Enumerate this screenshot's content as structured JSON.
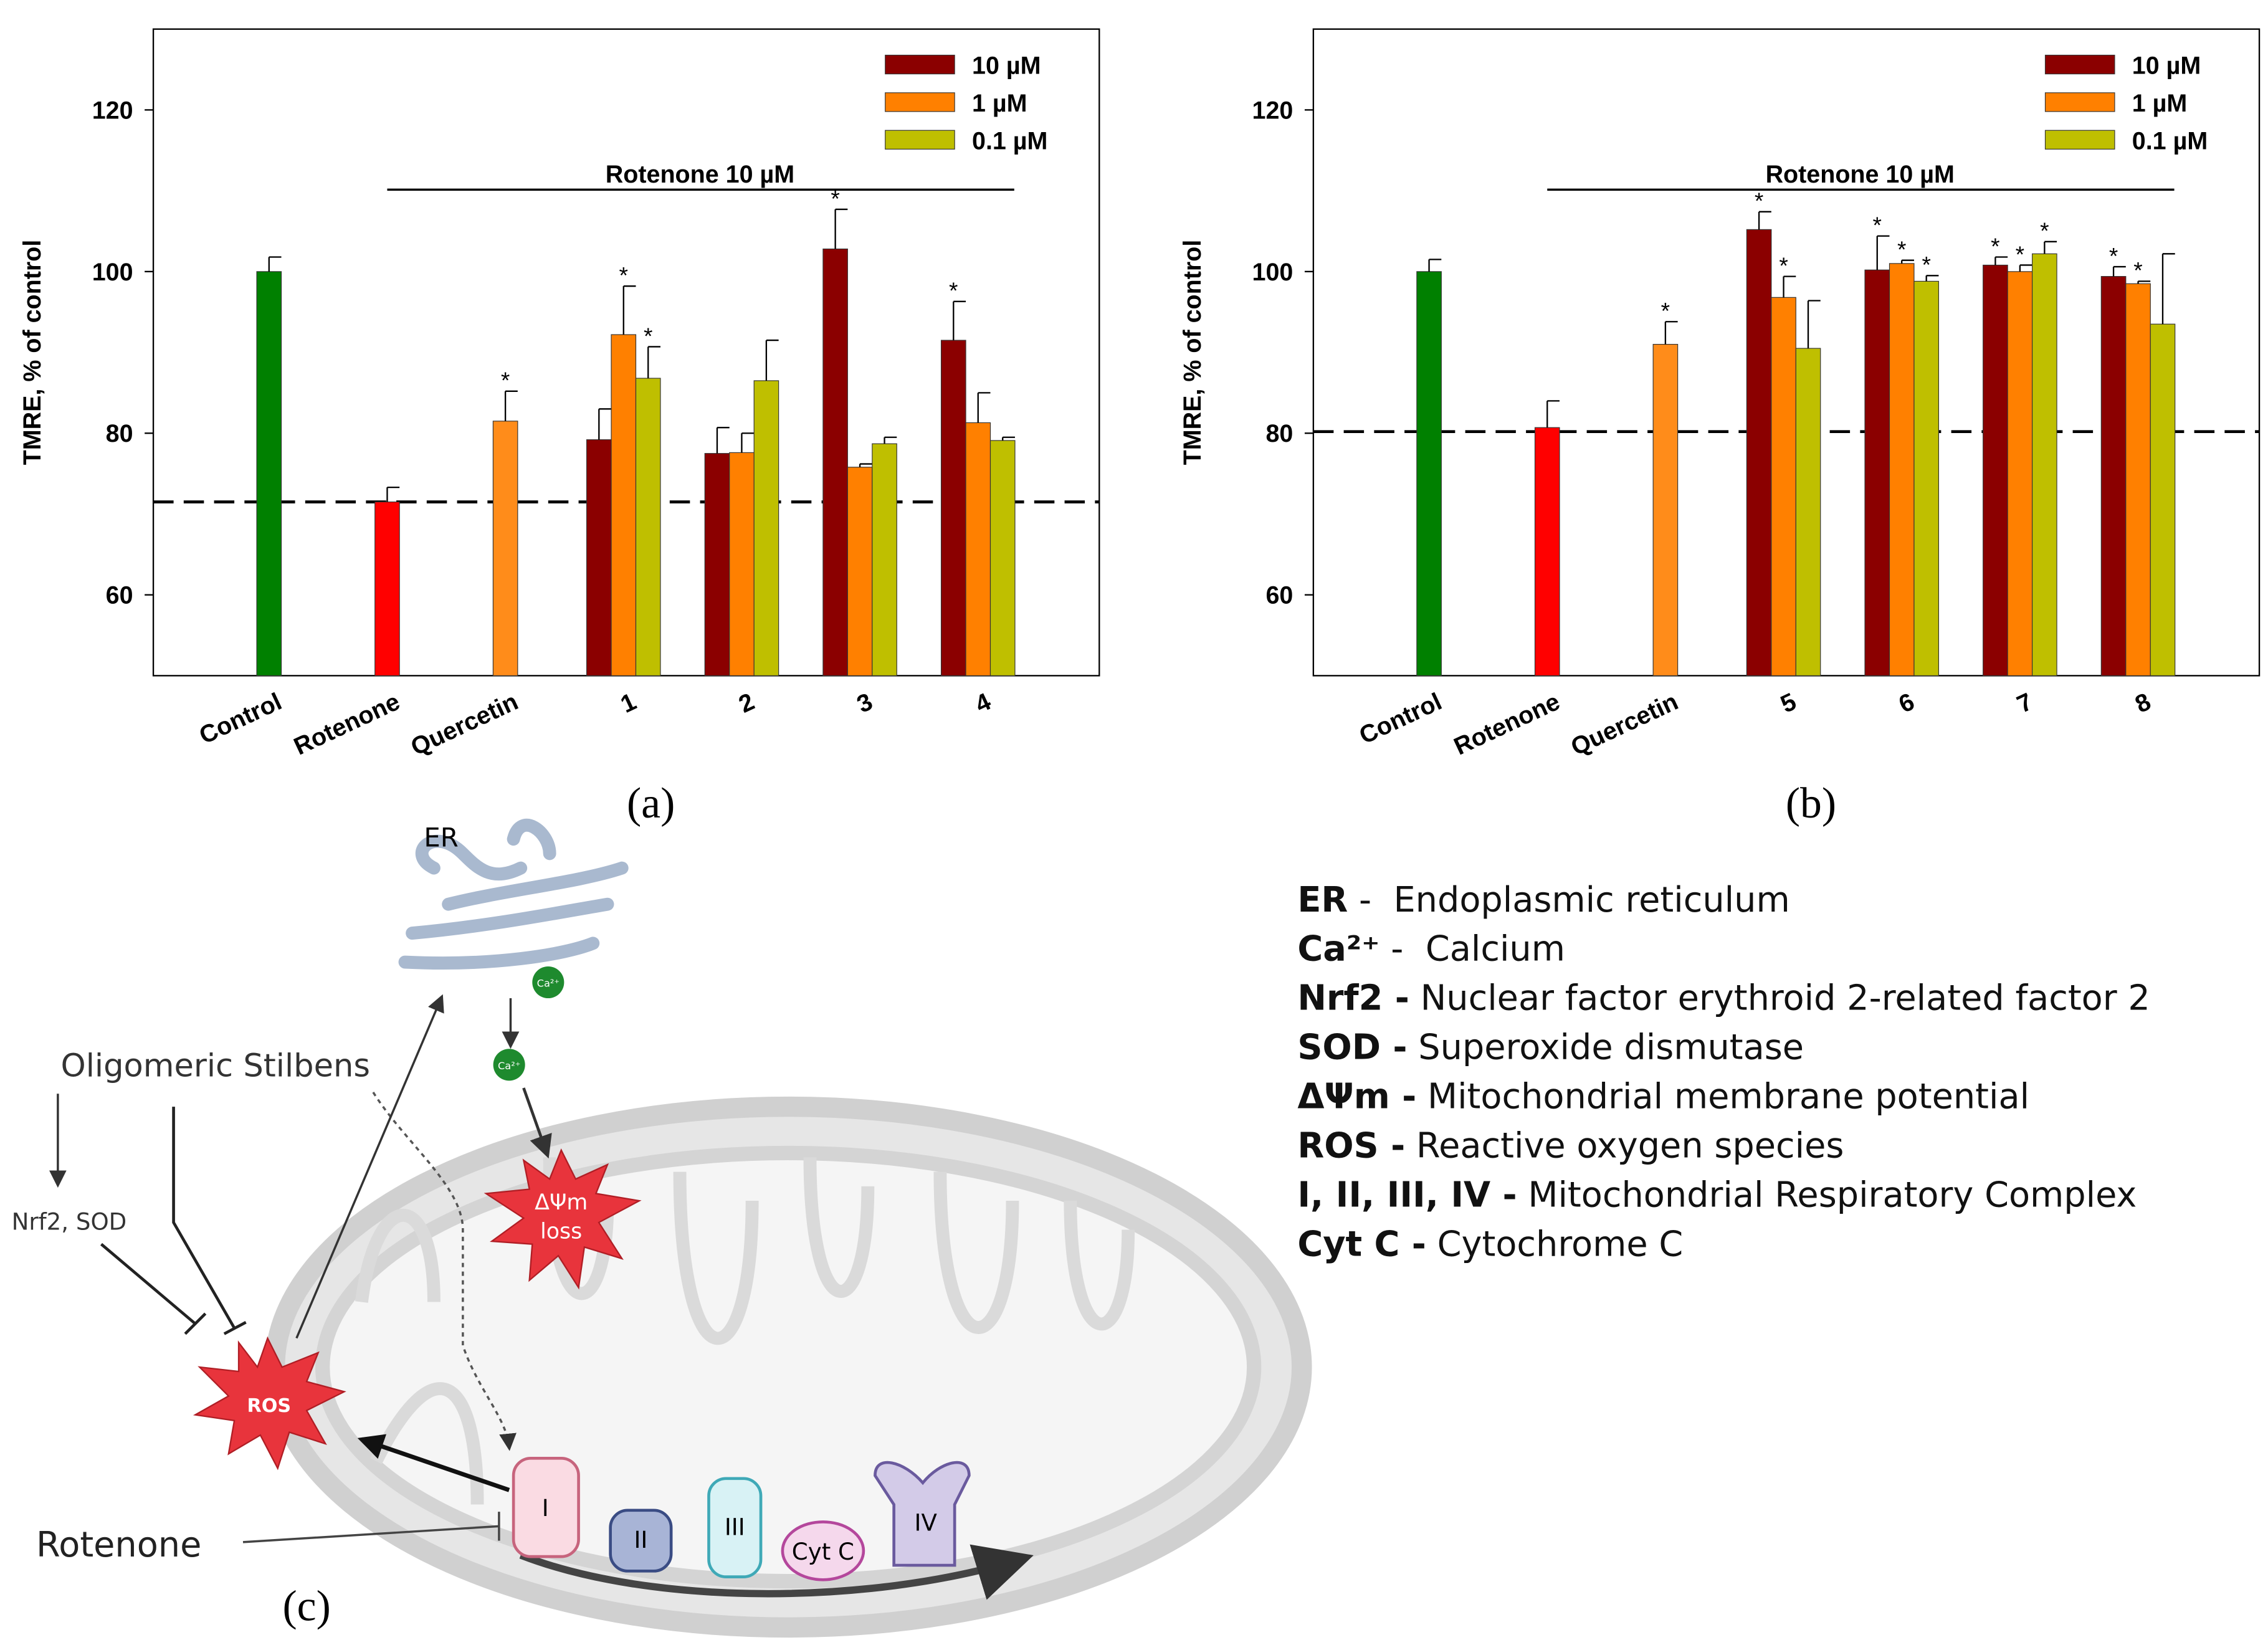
{
  "chart_data": [
    {
      "type": "bar",
      "panel_label": "(a)",
      "y_label": "TMRE, % of control",
      "categories": [
        "Control",
        "Rotenone",
        "Quercetin",
        "1",
        "2",
        "3",
        "4"
      ],
      "ylim": [
        50,
        130
      ],
      "yticks": [
        60,
        80,
        100,
        120
      ],
      "reference_line": 71.5,
      "bracket_label": "Rotenone 10 µM",
      "single_bars": {
        "values": [
          100,
          71.5,
          81.5,
          null,
          null,
          null,
          null
        ],
        "errors": [
          1.8,
          1.8,
          3.7,
          null,
          null,
          null,
          null
        ],
        "colors": [
          "#008000",
          "#ff0000",
          "#ff8c1a",
          null,
          null,
          null,
          null
        ],
        "significance": [
          null,
          null,
          "*",
          null,
          null,
          null,
          null
        ]
      },
      "series": [
        {
          "name": "10 µM",
          "color": "#8b0000",
          "values": [
            null,
            null,
            null,
            79.2,
            77.5,
            102.8,
            91.5
          ],
          "errors": [
            null,
            null,
            null,
            3.8,
            3.2,
            4.9,
            4.8
          ],
          "significance": [
            null,
            null,
            null,
            null,
            null,
            "*",
            "*"
          ]
        },
        {
          "name": "1 µM",
          "color": "#ff8000",
          "values": [
            null,
            null,
            null,
            92.2,
            77.6,
            75.8,
            81.3
          ],
          "errors": [
            null,
            null,
            null,
            6,
            2.4,
            0.4,
            3.7
          ],
          "significance": [
            null,
            null,
            null,
            "*",
            null,
            null,
            null
          ]
        },
        {
          "name": "0.1 µM",
          "color": "#bfbf00",
          "values": [
            null,
            null,
            null,
            86.8,
            86.5,
            78.7,
            79.1
          ],
          "errors": [
            null,
            null,
            null,
            3.9,
            5,
            0.8,
            0.4
          ],
          "significance": [
            null,
            null,
            null,
            "*",
            null,
            null,
            null
          ]
        }
      ]
    },
    {
      "type": "bar",
      "panel_label": "(b)",
      "y_label": "TMRE, % of control",
      "categories": [
        "Control",
        "Rotenone",
        "Quercetin",
        "5",
        "6",
        "7",
        "8"
      ],
      "ylim": [
        50,
        130
      ],
      "yticks": [
        60,
        80,
        100,
        120
      ],
      "reference_line": 80.2,
      "bracket_label": "Rotenone 10 µM",
      "single_bars": {
        "values": [
          100,
          80.7,
          91,
          null,
          null,
          null,
          null
        ],
        "errors": [
          1.5,
          3.3,
          2.8,
          null,
          null,
          null,
          null
        ],
        "colors": [
          "#008000",
          "#ff0000",
          "#ff8c1a",
          null,
          null,
          null,
          null
        ],
        "significance": [
          null,
          null,
          "*",
          null,
          null,
          null,
          null
        ]
      },
      "series": [
        {
          "name": "10 µM",
          "color": "#8b0000",
          "values": [
            null,
            null,
            null,
            105.2,
            100.2,
            100.8,
            99.4
          ],
          "errors": [
            null,
            null,
            null,
            2.2,
            4.2,
            1,
            1.2
          ],
          "significance": [
            null,
            null,
            null,
            "*",
            "*",
            "*",
            "*"
          ]
        },
        {
          "name": "1 µM",
          "color": "#ff8000",
          "values": [
            null,
            null,
            null,
            96.8,
            101,
            100,
            98.5
          ],
          "errors": [
            null,
            null,
            null,
            2.6,
            0.4,
            0.8,
            0.3
          ],
          "significance": [
            null,
            null,
            null,
            "*",
            "*",
            "*",
            "*"
          ]
        },
        {
          "name": "0.1 µM",
          "color": "#bfbf00",
          "values": [
            null,
            null,
            null,
            90.5,
            98.8,
            102.2,
            93.5
          ],
          "errors": [
            null,
            null,
            null,
            5.9,
            0.7,
            1.5,
            8.7
          ],
          "significance": [
            null,
            null,
            null,
            null,
            "*",
            "*",
            null
          ]
        }
      ]
    }
  ],
  "diagram": {
    "panel_label": "(c)",
    "er": "ER",
    "calcium": "Ca²⁺",
    "calcium_2": "Ca²⁺",
    "potential_loss_1": "ΔΨm",
    "potential_loss_2": "loss",
    "stilbens": "Oligomeric Stilbens",
    "nrf2": "Nrf2, SOD",
    "ros": "ROS",
    "rotenone": "Rotenone",
    "complexes": [
      "I",
      "II",
      "III",
      "Cyt C",
      "IV"
    ]
  },
  "glossary": [
    {
      "term": "ER",
      "description": " -  Endoplasmic reticulum"
    },
    {
      "term": "Ca²⁺",
      "description": " -  Calcium"
    },
    {
      "term": "Nrf2 -",
      "description": " Nuclear factor erythroid 2-related factor 2"
    },
    {
      "term": "SOD -",
      "description": " Superoxide dismutase"
    },
    {
      "term": "ΔΨm -",
      "description": " Mitochondrial membrane potential"
    },
    {
      "term": "ROS -",
      "description": " Reactive oxygen species"
    },
    {
      "term": "I, II, III, IV -",
      "description": " Mitochondrial Respiratory Complex"
    },
    {
      "term": "Cyt C -",
      "description": " Cytochrome C"
    }
  ]
}
